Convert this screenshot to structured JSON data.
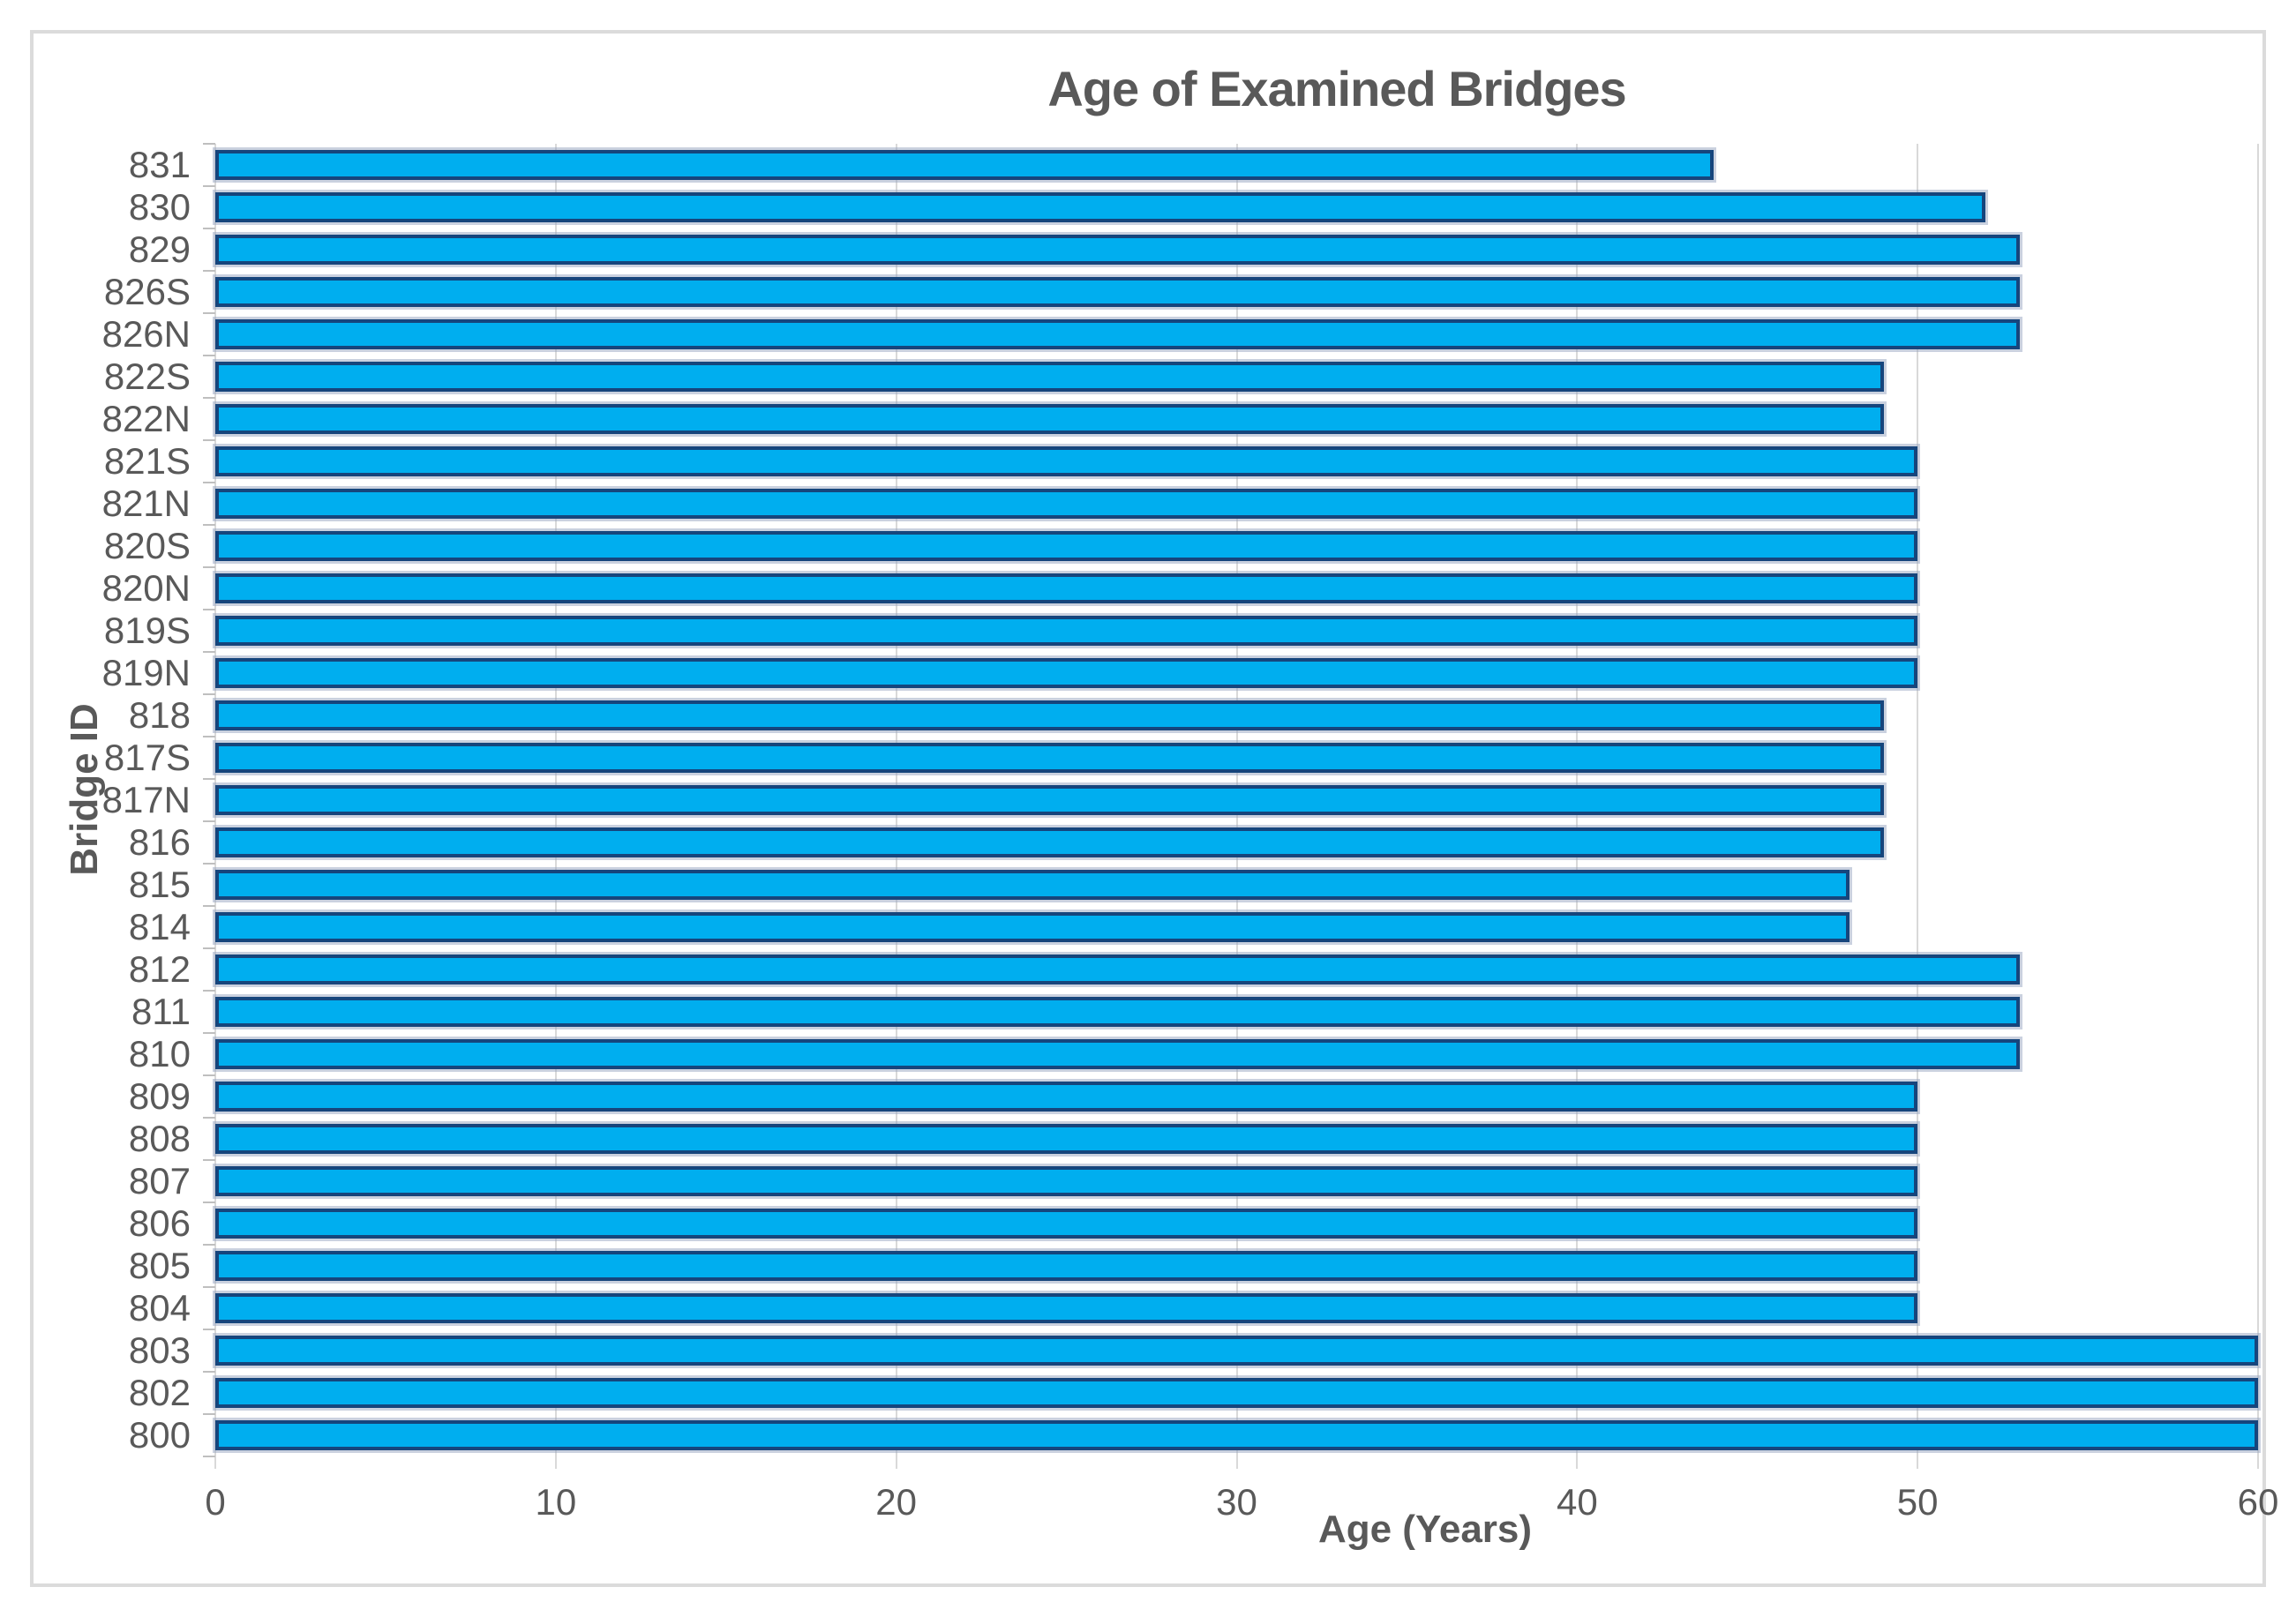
{
  "frame": {
    "border_color": "#dbdbdb",
    "background": "#ffffff"
  },
  "chart_data": {
    "type": "bar",
    "orientation": "horizontal",
    "title": "Age of Examined Bridges",
    "xlabel": "Age (Years)",
    "ylabel": "Bridge ID",
    "categories": [
      "831",
      "830",
      "829",
      "826S",
      "826N",
      "822S",
      "822N",
      "821S",
      "821N",
      "820S",
      "820N",
      "819S",
      "819N",
      "818",
      "817S",
      "817N",
      "816",
      "815",
      "814",
      "812",
      "811",
      "810",
      "809",
      "808",
      "807",
      "806",
      "805",
      "804",
      "803",
      "802",
      "800"
    ],
    "values": [
      44,
      52,
      53,
      53,
      53,
      49,
      49,
      50,
      50,
      50,
      50,
      50,
      50,
      49,
      49,
      49,
      49,
      48,
      48,
      53,
      53,
      53,
      50,
      50,
      50,
      50,
      50,
      50,
      60,
      60,
      60
    ],
    "xlim": [
      0,
      60
    ],
    "x_ticks": [
      0,
      10,
      20,
      30,
      40,
      50,
      60
    ],
    "grid": "vertical",
    "legend": "none",
    "bar_fill_color": "#00AEEF",
    "bar_border_color": "#16457C",
    "bar_halo_color": "#96A3C0",
    "gridline_color": "#D9D9D9",
    "tick_color": "#BFBFBF",
    "text_color": "#595959"
  }
}
